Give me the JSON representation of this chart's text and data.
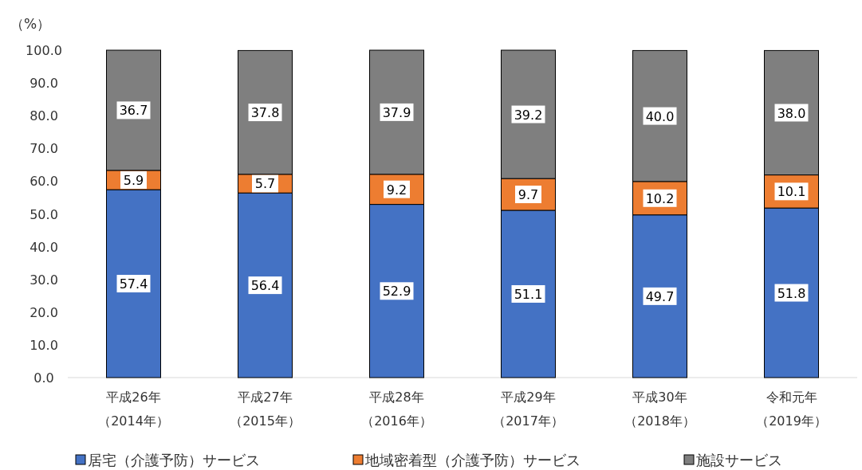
{
  "chart_data": {
    "type": "bar",
    "stacked": true,
    "ylabel": "（%）",
    "categories": [
      "平成26年（2014年）",
      "平成27年（2015年）",
      "平成28年（2016年）",
      "平成29年（2017年）",
      "平成30年（2018年）",
      "令和元年（2019年）"
    ],
    "series": [
      {
        "name": "居宅（介護予防）サービス",
        "color": "#4472c4",
        "values": [
          57.4,
          56.4,
          52.9,
          51.1,
          49.7,
          51.8
        ],
        "value_labels": [
          "57.4",
          "56.4",
          "52.9",
          "51.1",
          "49.7",
          "51.8"
        ]
      },
      {
        "name": "地域密着型（介護予防）サービス",
        "color": "#ed7d31",
        "values": [
          5.9,
          5.7,
          9.2,
          9.7,
          10.2,
          10.1
        ],
        "value_labels": [
          "5.9",
          "5.7",
          "9.2",
          "9.7",
          "10.2",
          "10.1"
        ]
      },
      {
        "name": "施設サービス",
        "color": "#7f7f7f",
        "values": [
          36.7,
          37.8,
          37.9,
          39.2,
          40.0,
          38.0
        ],
        "value_labels": [
          "36.7",
          "37.8",
          "37.9",
          "39.2",
          "40.0",
          "38.0"
        ]
      }
    ],
    "ylim": [
      0,
      100
    ],
    "yticks": [
      {
        "value": 0,
        "label": "0.0"
      },
      {
        "value": 10,
        "label": "10.0"
      },
      {
        "value": 20,
        "label": "20.0"
      },
      {
        "value": 30,
        "label": "30.0"
      },
      {
        "value": 40,
        "label": "40.0"
      },
      {
        "value": 50,
        "label": "50.0"
      },
      {
        "value": 60,
        "label": "60.0"
      },
      {
        "value": 70,
        "label": "70.0"
      },
      {
        "value": 80,
        "label": "80.0"
      },
      {
        "value": 90,
        "label": "90.0"
      },
      {
        "value": 100,
        "label": "100.0"
      }
    ],
    "grid": false,
    "legend": "bottom"
  }
}
